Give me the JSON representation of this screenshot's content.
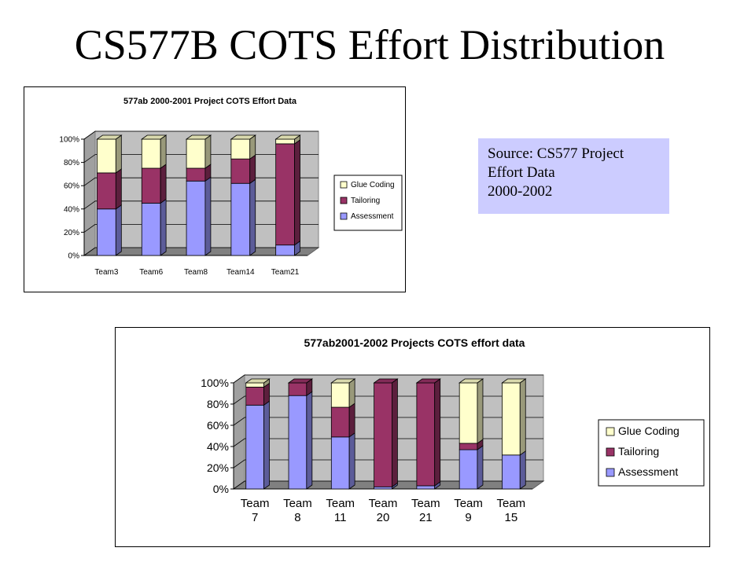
{
  "slide": {
    "title": "CS577B COTS Effort Distribution",
    "source_lines": [
      "Source: CS577 Project",
      "Effort Data",
      "2000-2002"
    ]
  },
  "colors": {
    "assessment": "#9999ff",
    "tailoring": "#993366",
    "glue_coding": "#ffffcc",
    "wall": "#c0c0c0",
    "floor": "#808080"
  },
  "chart_data": [
    {
      "type": "bar",
      "stacked": true,
      "title": "577ab 2000-2001 Project COTS Effort Data",
      "categories": [
        "Team3",
        "Team6",
        "Team8",
        "Team14",
        "Team21"
      ],
      "series": [
        {
          "name": "Assessment",
          "values": [
            40,
            45,
            64,
            62,
            9
          ]
        },
        {
          "name": "Tailoring",
          "values": [
            31,
            30,
            11,
            21,
            87
          ]
        },
        {
          "name": "Glue Coding",
          "values": [
            29,
            25,
            25,
            17,
            4
          ]
        }
      ],
      "ylim": [
        0,
        100
      ],
      "yticks": [
        "0%",
        "20%",
        "40%",
        "60%",
        "80%",
        "100%"
      ],
      "legend_entries": [
        "Glue Coding",
        "Tailoring",
        "Assessment"
      ],
      "legend": "right",
      "grid": true
    },
    {
      "type": "bar",
      "stacked": true,
      "title": "577ab2001-2002 Projects COTS effort data",
      "categories": [
        [
          "Team",
          "7"
        ],
        [
          "Team",
          "8"
        ],
        [
          "Team",
          "11"
        ],
        [
          "Team",
          "20"
        ],
        [
          "Team",
          "21"
        ],
        [
          "Team",
          "9"
        ],
        [
          "Team",
          "15"
        ]
      ],
      "series": [
        {
          "name": "Assessment",
          "values": [
            79,
            88,
            49,
            2,
            3,
            37,
            32
          ]
        },
        {
          "name": "Tailoring",
          "values": [
            17,
            12,
            28,
            98,
            97,
            6,
            0
          ]
        },
        {
          "name": "Glue Coding",
          "values": [
            4,
            0,
            23,
            0,
            0,
            57,
            68
          ]
        }
      ],
      "ylim": [
        0,
        100
      ],
      "yticks": [
        "0%",
        "20%",
        "40%",
        "60%",
        "80%",
        "100%"
      ],
      "legend_entries": [
        "Glue Coding",
        "Tailoring",
        "Assessment"
      ],
      "legend": "right",
      "grid": true
    }
  ]
}
